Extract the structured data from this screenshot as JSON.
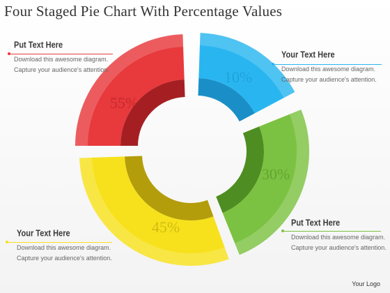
{
  "title": "Four Staged Pie Chart With Percentage Values",
  "segments": [
    {
      "label": "10%",
      "color": "#29b6f0",
      "dark": "#1a8fc7"
    },
    {
      "label": "30%",
      "color": "#7cc242",
      "dark": "#4e8d22"
    },
    {
      "label": "45%",
      "color": "#f7e11c",
      "dark": "#b49d0a"
    },
    {
      "label": "55%",
      "color": "#e8393c",
      "dark": "#a51f22"
    }
  ],
  "callouts": [
    {
      "heading": "Put Text Here",
      "line1": "Download this awesome diagram.",
      "line2": "Capture your audience's attention.",
      "color": "#e8393c"
    },
    {
      "heading": "Your Text Here",
      "line1": "Download this awesome diagram.",
      "line2": "Capture your audience's attention.",
      "color": "#29b6f0"
    },
    {
      "heading": "Put Text Here",
      "line1": "Download this awesome diagram.",
      "line2": "Capture your audience's attention.",
      "color": "#7cc242"
    },
    {
      "heading": "Your Text Here",
      "line1": "Download this awesome diagram.",
      "line2": "Capture your audience's attention.",
      "color": "#f7e11c"
    }
  ],
  "logo": "Your Logo"
}
